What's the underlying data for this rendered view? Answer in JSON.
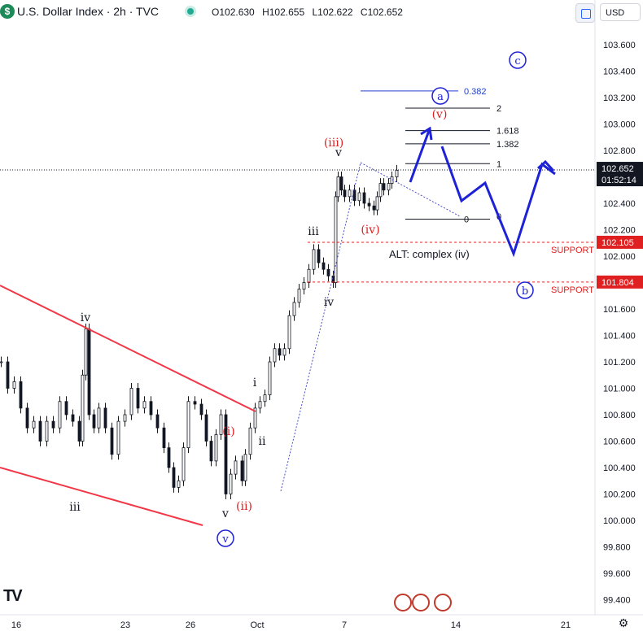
{
  "header": {
    "logo_letter": "$",
    "title": "U.S. Dollar Index · 2h · TVC",
    "ohlc": [
      {
        "label": "O",
        "value": "102.630"
      },
      {
        "label": "H",
        "value": "102.655"
      },
      {
        "label": "L",
        "value": "102.622"
      },
      {
        "label": "C",
        "value": "102.652"
      }
    ],
    "currency": "USD",
    "status_color": "#22ab94"
  },
  "chart_data": {
    "type": "candlestick",
    "title": "",
    "ylim": [
      99.3,
      103.8
    ],
    "y_ticks": [
      "103.600",
      "103.400",
      "103.200",
      "103.000",
      "102.800",
      "102.600",
      "102.400",
      "102.200",
      "102.000",
      "101.800",
      "101.600",
      "101.400",
      "101.200",
      "101.000",
      "100.800",
      "100.600",
      "100.400",
      "100.200",
      "100.000",
      "99.800",
      "99.600",
      "99.400"
    ],
    "x_ticks": [
      "16",
      "23",
      "26",
      "Oct",
      "7",
      "14",
      "21"
    ],
    "price_label": {
      "value": "102.652",
      "countdown": "01:52:14"
    },
    "support_levels": [
      {
        "value": 102.105,
        "label": "102.105",
        "text": "SUPPORT"
      },
      {
        "value": 101.804,
        "label": "101.804",
        "text": "SUPPORT"
      }
    ],
    "fib_levels": [
      {
        "ratio": "0.382",
        "value": 103.25
      },
      {
        "ratio": "2",
        "value": 103.12
      },
      {
        "ratio": "1.618",
        "value": 102.95
      },
      {
        "ratio": "1.382",
        "value": 102.85
      },
      {
        "ratio": "1",
        "value": 102.7
      },
      {
        "ratio": "0",
        "value": 102.28
      }
    ],
    "wave_labels_black": [
      "iv",
      "iii",
      "v",
      "i",
      "ii",
      "iii",
      "iv",
      "v"
    ],
    "wave_labels_red": [
      "(i)",
      "(ii)",
      "(iii)",
      "(iv)",
      "(v)"
    ],
    "wave_labels_circled": [
      "v",
      "a",
      "b",
      "c"
    ],
    "annotation": "ALT: complex (iv)",
    "colors": {
      "wedge": "#f23645",
      "projection": "#1e22d6",
      "support": "#e02020",
      "fib_blue": "#1e3fcf",
      "candle": "#131722"
    }
  },
  "footer": {
    "tv_logo": "17"
  }
}
